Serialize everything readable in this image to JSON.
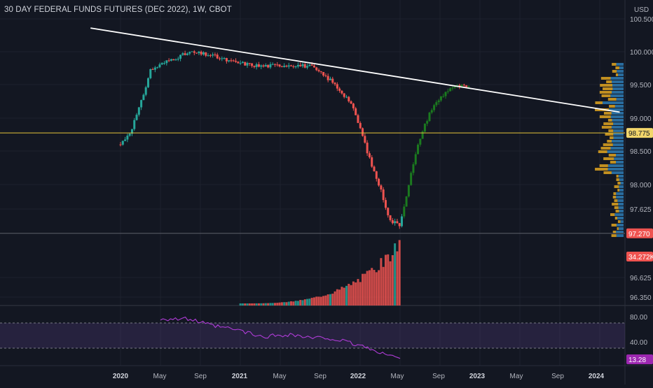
{
  "header": {
    "title": "30 DAY FEDERAL FUNDS FUTURES (DEC 2022), 1W, CBOT",
    "currency": "USD"
  },
  "price_axis": {
    "ticks": [
      "100.500",
      "100.000",
      "99.500",
      "99.000",
      "98.500",
      "98.000",
      "97.625",
      "96.625",
      "96.350"
    ]
  },
  "badges": {
    "last_price": "98.775",
    "low_line": "97.270",
    "volume": "34.272K",
    "rsi": "13.28"
  },
  "rsi_axis": {
    "ticks": [
      "80.00",
      "40.00"
    ]
  },
  "time_axis": {
    "ticks": [
      "2020",
      "May",
      "Sep",
      "2021",
      "May",
      "Sep",
      "2022",
      "May",
      "Sep",
      "2023",
      "May",
      "Sep",
      "2024"
    ]
  },
  "colors": {
    "background": "#131722",
    "grid": "#1e222d",
    "up": "#26a69a",
    "down": "#ef5350",
    "up_late": "#1b7a1f",
    "trendline": "#ffffff",
    "hline": "#e8c53a",
    "rsi": "#b03cd8",
    "rsi_band": "#7e57c2",
    "volume_profile_a": "#e0a420",
    "volume_profile_b": "#2e7bb4"
  },
  "chart_data": [
    {
      "type": "candlestick",
      "title": "30 DAY FEDERAL FUNDS FUTURES (DEC 2022), 1W, CBOT",
      "x_range": [
        "2019-10",
        "2024-04"
      ],
      "ylim": [
        96.2,
        100.7
      ],
      "y_scale": "piecewise",
      "grid": true,
      "horizontal_lines": [
        98.775,
        97.27
      ],
      "trendline": [
        {
          "x": "2019-10",
          "y": 100.36
        },
        {
          "x": "2024-03",
          "y": 99.09
        }
      ],
      "series": [
        {
          "name": "close",
          "points": [
            {
              "x": "2020-01",
              "y": 98.6
            },
            {
              "x": "2020-02",
              "y": 98.8
            },
            {
              "x": "2020-03",
              "y": 99.2
            },
            {
              "x": "2020-04",
              "y": 99.72
            },
            {
              "x": "2020-06",
              "y": 99.88
            },
            {
              "x": "2020-08",
              "y": 99.99
            },
            {
              "x": "2020-10",
              "y": 99.95
            },
            {
              "x": "2020-12",
              "y": 99.85
            },
            {
              "x": "2021-03",
              "y": 99.78
            },
            {
              "x": "2021-06",
              "y": 99.8
            },
            {
              "x": "2021-08",
              "y": 99.78
            },
            {
              "x": "2021-10",
              "y": 99.57
            },
            {
              "x": "2021-12",
              "y": 99.25
            },
            {
              "x": "2022-01",
              "y": 98.85
            },
            {
              "x": "2022-02",
              "y": 98.35
            },
            {
              "x": "2022-03",
              "y": 97.95
            },
            {
              "x": "2022-04",
              "y": 97.45
            },
            {
              "x": "2022-05",
              "y": 97.4
            },
            {
              "x": "2022-06",
              "y": 98.1
            },
            {
              "x": "2022-07",
              "y": 98.7
            },
            {
              "x": "2022-08",
              "y": 99.1
            },
            {
              "x": "2022-09",
              "y": 99.3
            },
            {
              "x": "2022-10",
              "y": 99.45
            },
            {
              "x": "2022-11",
              "y": 99.48
            },
            {
              "x": "2022-12",
              "y": 99.45
            }
          ]
        }
      ]
    },
    {
      "type": "line",
      "title": "RSI",
      "ylim": [
        0,
        100
      ],
      "bands": [
        30,
        70
      ],
      "series": [
        {
          "points": [
            {
              "x": "2020-05",
              "y": 77
            },
            {
              "x": "2020-08",
              "y": 76
            },
            {
              "x": "2020-10",
              "y": 66
            },
            {
              "x": "2021-01",
              "y": 58
            },
            {
              "x": "2021-03",
              "y": 48
            },
            {
              "x": "2021-06",
              "y": 52
            },
            {
              "x": "2021-08",
              "y": 46
            },
            {
              "x": "2021-10",
              "y": 46
            },
            {
              "x": "2021-12",
              "y": 38
            },
            {
              "x": "2022-02",
              "y": 30
            },
            {
              "x": "2022-03",
              "y": 20
            },
            {
              "x": "2022-04",
              "y": 22
            },
            {
              "x": "2022-05",
              "y": 13.28
            }
          ]
        }
      ]
    }
  ]
}
